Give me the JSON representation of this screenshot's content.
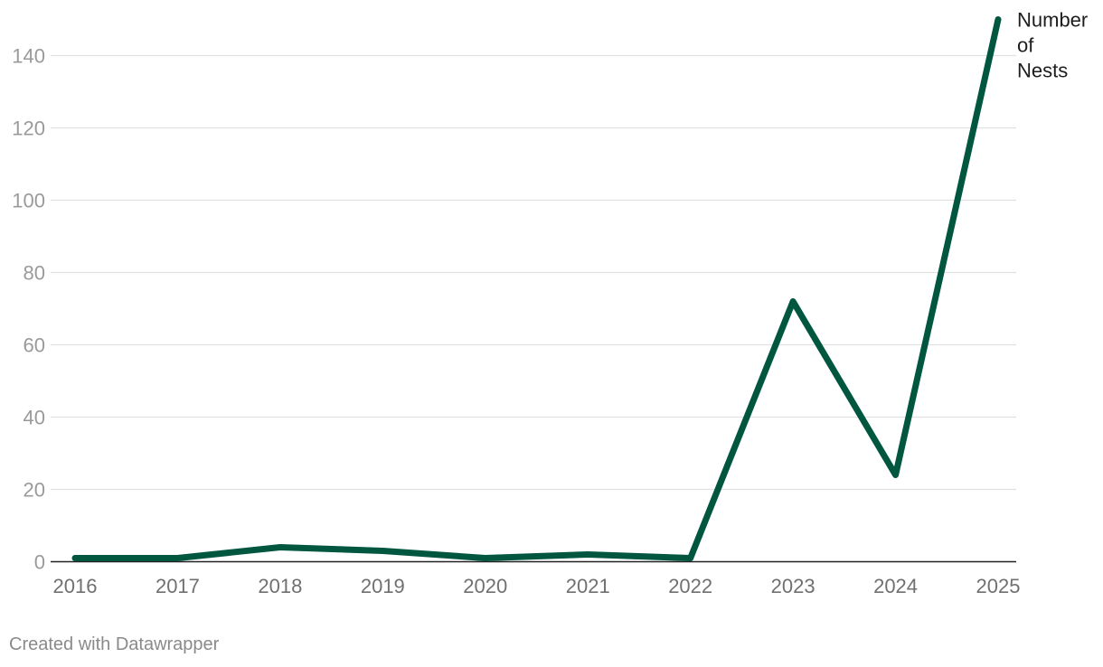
{
  "chart_data": {
    "type": "line",
    "title": "",
    "xlabel": "",
    "ylabel": "",
    "x": [
      "2016",
      "2017",
      "2018",
      "2019",
      "2020",
      "2021",
      "2022",
      "2023",
      "2024",
      "2025"
    ],
    "series": [
      {
        "name": "Number of Nests",
        "label_lines": [
          "Number",
          "of",
          "Nests"
        ],
        "values": [
          1,
          1,
          4,
          3,
          1,
          2,
          1,
          72,
          24,
          150
        ],
        "color": "#00563f"
      }
    ],
    "yticks": [
      0,
      20,
      40,
      60,
      80,
      100,
      120,
      140
    ],
    "ylim": [
      0,
      150
    ],
    "grid": true,
    "legend": "direct label at end of line"
  },
  "credit": "Created with Datawrapper"
}
